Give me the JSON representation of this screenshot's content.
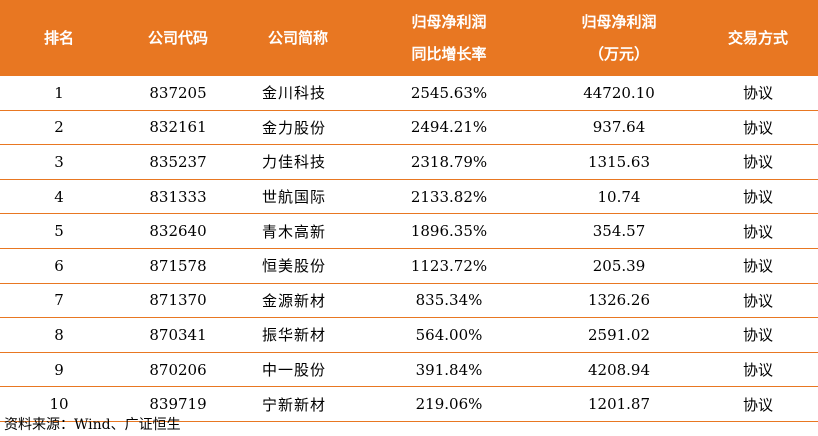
{
  "table": {
    "headers": {
      "rank": "排名",
      "code": "公司代码",
      "name": "公司简称",
      "growth_line1": "归母净利润",
      "growth_line2": "同比增长率",
      "profit_line1": "归母净利润",
      "profit_line2": "（万元）",
      "trade": "交易方式"
    },
    "rows": [
      {
        "rank": "1",
        "code": "837205",
        "name": "金川科技",
        "growth": "2545.63%",
        "profit": "44720.10",
        "trade": "协议"
      },
      {
        "rank": "2",
        "code": "832161",
        "name": "金力股份",
        "growth": "2494.21%",
        "profit": "937.64",
        "trade": "协议"
      },
      {
        "rank": "3",
        "code": "835237",
        "name": "力佳科技",
        "growth": "2318.79%",
        "profit": "1315.63",
        "trade": "协议"
      },
      {
        "rank": "4",
        "code": "831333",
        "name": "世航国际",
        "growth": "2133.82%",
        "profit": "10.74",
        "trade": "协议"
      },
      {
        "rank": "5",
        "code": "832640",
        "name": "青木高新",
        "growth": "1896.35%",
        "profit": "354.57",
        "trade": "协议"
      },
      {
        "rank": "6",
        "code": "871578",
        "name": "恒美股份",
        "growth": "1123.72%",
        "profit": "205.39",
        "trade": "协议"
      },
      {
        "rank": "7",
        "code": "871370",
        "name": "金源新材",
        "growth": "835.34%",
        "profit": "1326.26",
        "trade": "协议"
      },
      {
        "rank": "8",
        "code": "870341",
        "name": "振华新材",
        "growth": "564.00%",
        "profit": "2591.02",
        "trade": "协议"
      },
      {
        "rank": "9",
        "code": "870206",
        "name": "中一股份",
        "growth": "391.84%",
        "profit": "4208.94",
        "trade": "协议"
      },
      {
        "rank": "10",
        "code": "839719",
        "name": "宁新新材",
        "growth": "219.06%",
        "profit": "1201.87",
        "trade": "协议"
      }
    ]
  },
  "source": "资料来源：Wind、广证恒生",
  "colors": {
    "header_bg": "#E87722",
    "header_text": "#ffffff",
    "row_divider": "#E87722"
  }
}
